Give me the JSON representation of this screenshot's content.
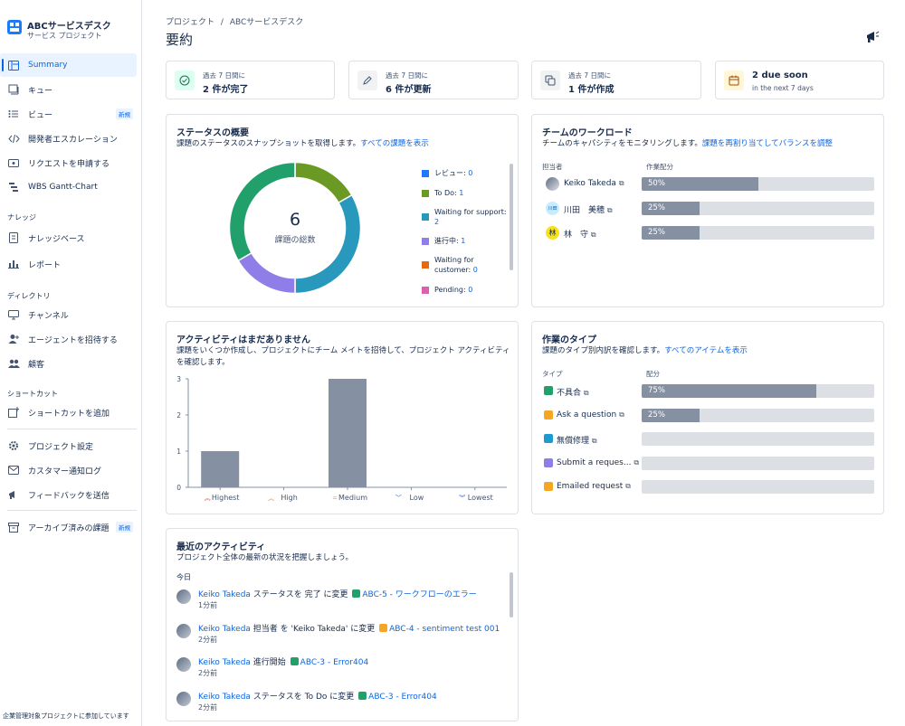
{
  "project": {
    "name": "ABCサービスデスク",
    "subtitle": "サービス プロジェクト"
  },
  "sidebar": {
    "items": [
      {
        "label": "Summary",
        "icon": "summary-icon",
        "active": true
      },
      {
        "label": "キュー",
        "icon": "queue-icon"
      },
      {
        "label": "ビュー",
        "icon": "list-icon",
        "badge": "新規"
      },
      {
        "label": "開発者エスカレーション",
        "icon": "code-icon"
      },
      {
        "label": "リクエストを申請する",
        "icon": "request-icon"
      },
      {
        "label": "WBS Gantt-Chart",
        "icon": "gantt-icon"
      }
    ],
    "knowledge_label": "ナレッジ",
    "knowledge_items": [
      {
        "label": "ナレッジベース",
        "icon": "book-icon"
      },
      {
        "label": "レポート",
        "icon": "chart-icon"
      }
    ],
    "directory_label": "ディレクトリ",
    "directory_items": [
      {
        "label": "チャンネル",
        "icon": "monitor-icon"
      },
      {
        "label": "エージェントを招待する",
        "icon": "add-person-icon"
      },
      {
        "label": "顧客",
        "icon": "people-icon"
      }
    ],
    "shortcut_label": "ショートカット",
    "shortcut_items": [
      {
        "label": "ショートカットを追加",
        "icon": "add-shortcut-icon"
      }
    ],
    "bottom_items": [
      {
        "label": "プロジェクト設定",
        "icon": "gear-icon"
      },
      {
        "label": "カスタマー通知ログ",
        "icon": "mail-icon"
      },
      {
        "label": "フィードバックを送信",
        "icon": "megaphone-icon"
      }
    ],
    "archive_item": {
      "label": "アーカイブ済みの課題",
      "badge": "新規"
    },
    "footer": "企業管理対象プロジェクトに参加しています"
  },
  "header": {
    "breadcrumb_root": "プロジェクト",
    "breadcrumb_sep": "/",
    "breadcrumb_current": "ABCサービスデスク",
    "title": "要約"
  },
  "stats": [
    {
      "small": "過去 7 日間に",
      "big": "2 件が完了",
      "color": "#dcfff1"
    },
    {
      "small": "過去 7 日間に",
      "big": "6 件が更新",
      "color": "#f1f2f4"
    },
    {
      "small": "過去 7 日間に",
      "big": "1 件が作成",
      "color": "#f1f2f4"
    },
    {
      "big": "2 due soon",
      "small": "in the next 7 days",
      "color": "#fff7d6"
    }
  ],
  "status_overview": {
    "title": "ステータスの概要",
    "desc": "課題のステータスのスナップショットを取得します。",
    "link": "すべての課題を表示",
    "total": "6",
    "total_label": "課題の総数",
    "legend": [
      {
        "label": "レビュー: ",
        "value": "0",
        "color": "#1d7afc"
      },
      {
        "label": "To Do: ",
        "value": "1",
        "color": "#6a9a23"
      },
      {
        "label": "Waiting for support: ",
        "value": "2",
        "color": "#2898bd"
      },
      {
        "label": "進行中: ",
        "value": "1",
        "color": "#8f7ee7"
      },
      {
        "label": "Waiting for customer: ",
        "value": "0",
        "color": "#e56910"
      },
      {
        "label": "Pending: ",
        "value": "0",
        "color": "#da62ac"
      }
    ],
    "segments": [
      {
        "value": 1,
        "color": "#6a9a23"
      },
      {
        "value": 2,
        "color": "#2898bd"
      },
      {
        "value": 1,
        "color": "#8f7ee7"
      },
      {
        "value": 2,
        "color": "#22a06b"
      }
    ]
  },
  "workload": {
    "title": "チームのワークロード",
    "desc": "チームのキャパシティをモニタリングします。",
    "link": "課題を再割り当てしてバランスを調整",
    "col_assignee": "担当者",
    "col_alloc": "作業配分",
    "rows": [
      {
        "name": "Keiko Takeda",
        "pct": 50,
        "label": "50%",
        "avatar": "photo"
      },
      {
        "name": "川田　美穂",
        "pct": 25,
        "label": "25%",
        "avatar": "川田"
      },
      {
        "name": "林　守",
        "pct": 25,
        "label": "25%",
        "avatar": "林"
      }
    ]
  },
  "activity_chart": {
    "title": "アクティビティはまだありません",
    "desc1": "課題をいくつか作成し、プロジェクトにチーム メイトを招待して、プロジェクト アクティビティ",
    "desc2": "を確認します。"
  },
  "chart_data": {
    "type": "bar",
    "categories": [
      "Highest",
      "High",
      "Medium",
      "Low",
      "Lowest"
    ],
    "values": [
      1,
      0,
      3,
      0,
      0
    ],
    "ylim": [
      0,
      3
    ],
    "yticks": [
      "0",
      "1",
      "2",
      "3"
    ],
    "color": "#8590a2"
  },
  "work_types": {
    "title": "作業のタイプ",
    "desc": "課題のタイプ別内訳を確認します。",
    "link": "すべてのアイテムを表示",
    "col_type": "タイプ",
    "col_alloc": "配分",
    "rows": [
      {
        "name": "不具合",
        "pct": 75,
        "label": "75%",
        "color": "#22a06b"
      },
      {
        "name": "Ask a question",
        "pct": 25,
        "label": "25%",
        "color": "#f5a623"
      },
      {
        "name": "無償修理",
        "pct": 0,
        "label": "",
        "color": "#1d9bd1"
      },
      {
        "name": "Submit a reques...",
        "pct": 0,
        "label": "",
        "color": "#8f7ee7"
      },
      {
        "name": "Emailed request",
        "pct": 0,
        "label": "",
        "color": "#f5a623"
      }
    ]
  },
  "recent": {
    "title": "最近のアクティビティ",
    "desc": "プロジェクト全体の最新の状況を把握しましょう。",
    "day": "今日",
    "items": [
      {
        "user": "Keiko Takeda",
        "action": " ステータスを 完了 に変更 ",
        "ticket": "ABC-5 - ワークフローのエラー",
        "time": "1分前",
        "tcolor": "green"
      },
      {
        "user": "Keiko Takeda",
        "action": " 担当者 を 'Keiko Takeda' に変更 ",
        "ticket": "ABC-4 - sentiment test 001",
        "time": "2分前",
        "tcolor": "orange"
      },
      {
        "user": "Keiko Takeda",
        "action": " 進行開始 ",
        "ticket": "ABC-3 - Error404",
        "time": "2分前",
        "tcolor": "green"
      },
      {
        "user": "Keiko Takeda",
        "action": " ステータスを To Do に変更 ",
        "ticket": "ABC-3 - Error404",
        "time": "2分前",
        "tcolor": "green"
      }
    ]
  }
}
